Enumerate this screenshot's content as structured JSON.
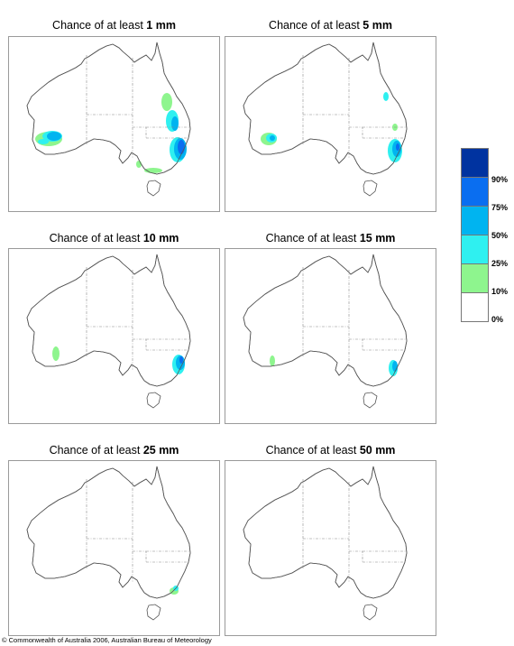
{
  "panels": [
    {
      "prefix": "Chance of at least ",
      "amount": "1 mm"
    },
    {
      "prefix": "Chance of at least ",
      "amount": "5 mm"
    },
    {
      "prefix": "Chance of at least ",
      "amount": "10 mm"
    },
    {
      "prefix": "Chance of at least ",
      "amount": "15 mm"
    },
    {
      "prefix": "Chance of at least ",
      "amount": "25 mm"
    },
    {
      "prefix": "Chance of at least ",
      "amount": "50 mm"
    }
  ],
  "legend": {
    "labels": [
      "90%",
      "75%",
      "50%",
      "25%",
      "10%",
      "0%"
    ],
    "colors": [
      "#0033a0",
      "#0a6ef0",
      "#00b4f0",
      "#2ff0f0",
      "#8ef58e",
      "#ffffff"
    ]
  },
  "footer": {
    "copyright": "© Commonwealth of Australia 2006, Australian Bureau of Meteorology"
  }
}
